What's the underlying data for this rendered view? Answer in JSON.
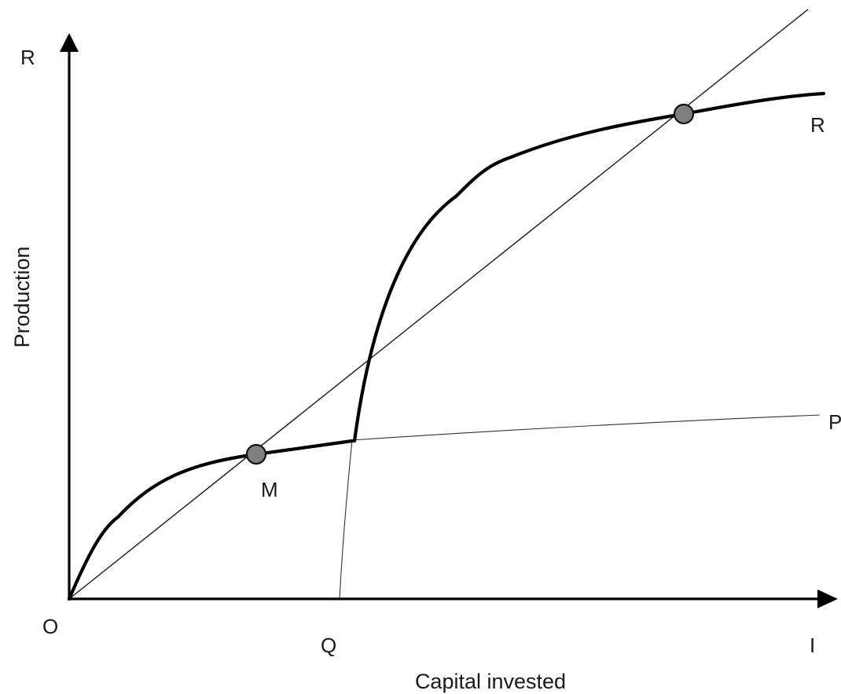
{
  "diagram": {
    "axes": {
      "y_axis_end_label": "R",
      "x_axis_end_label": "I",
      "origin_label": "O",
      "y_title": "Production",
      "x_title": "Capital invested"
    },
    "curves": {
      "upper_curve_label": "R",
      "lower_curve_label": "P"
    },
    "points": {
      "lower_equilibrium_label": "M",
      "threshold_label": "Q"
    },
    "colors": {
      "line": "#000000",
      "marker_fill": "#7f7f7f"
    }
  }
}
